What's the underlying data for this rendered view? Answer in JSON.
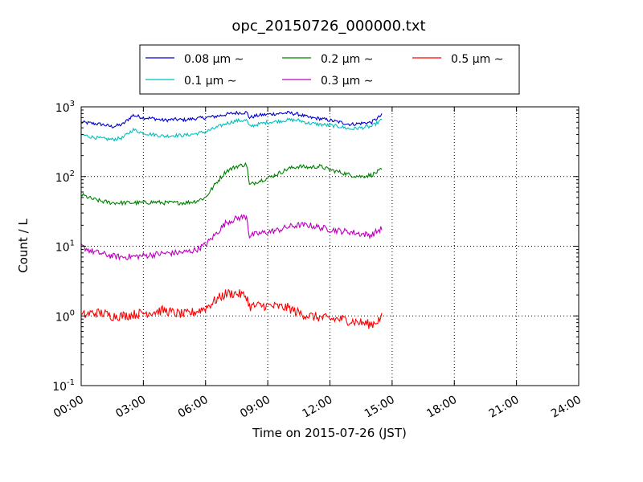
{
  "chart_data": {
    "type": "line",
    "title": "opc_20150726_000000.txt",
    "xlabel": "Time on 2015-07-26 (JST)",
    "ylabel": "Count / L",
    "x_unit": "hours",
    "xlim": [
      0,
      24
    ],
    "ylim": [
      0.1,
      1000
    ],
    "yscale": "log",
    "grid": true,
    "grid_style": "dotted",
    "legend_position": "above-plot",
    "legend_columns": 3,
    "x_tick_labels": [
      "00:00",
      "03:00",
      "06:00",
      "09:00",
      "12:00",
      "15:00",
      "18:00",
      "21:00",
      "24:00"
    ],
    "x_ticks": [
      0,
      3,
      6,
      9,
      12,
      15,
      18,
      21,
      24
    ],
    "y_ticks": [
      {
        "value": 0.1,
        "base": "10",
        "exp": "-1"
      },
      {
        "value": 1,
        "base": "10",
        "exp": "0"
      },
      {
        "value": 10,
        "base": "10",
        "exp": "1"
      },
      {
        "value": 100,
        "base": "10",
        "exp": "2"
      },
      {
        "value": 1000,
        "base": "10",
        "exp": "3"
      }
    ],
    "x": [
      0,
      0.5,
      1,
      1.5,
      2,
      2.5,
      3,
      3.5,
      4,
      4.5,
      5,
      5.5,
      6,
      6.5,
      7,
      7.5,
      8,
      8.1,
      8.5,
      9,
      9.5,
      10,
      10.5,
      11,
      11.5,
      12,
      12.5,
      13,
      13.5,
      14,
      14.5
    ],
    "series": [
      {
        "name": "0.08 μm ∼",
        "color": "#0000cc",
        "noise": 0.025,
        "values": [
          600,
          580,
          560,
          520,
          560,
          760,
          700,
          680,
          640,
          660,
          650,
          680,
          700,
          730,
          780,
          820,
          830,
          700,
          750,
          780,
          800,
          820,
          780,
          700,
          680,
          640,
          600,
          560,
          580,
          600,
          760
        ]
      },
      {
        "name": "0.1 μm ∼",
        "color": "#00bfbf",
        "noise": 0.025,
        "values": [
          400,
          370,
          350,
          340,
          360,
          470,
          420,
          400,
          380,
          390,
          390,
          410,
          440,
          500,
          580,
          630,
          640,
          520,
          560,
          600,
          620,
          650,
          640,
          580,
          560,
          540,
          520,
          480,
          500,
          520,
          650
        ]
      },
      {
        "name": "0.2 μm ∼",
        "color": "#008000",
        "noise": 0.03,
        "values": [
          55,
          48,
          44,
          42,
          42,
          42,
          42,
          43,
          42,
          42,
          42,
          44,
          50,
          80,
          120,
          140,
          150,
          75,
          85,
          95,
          110,
          130,
          140,
          135,
          140,
          125,
          115,
          105,
          100,
          105,
          125
        ]
      },
      {
        "name": "0.3 μm ∼",
        "color": "#bf00bf",
        "noise": 0.045,
        "values": [
          10,
          8.5,
          7.8,
          7.2,
          7.0,
          7.1,
          7.3,
          7.6,
          7.9,
          8.0,
          8.2,
          8.8,
          10.5,
          15,
          22,
          25,
          27,
          14,
          15,
          16,
          17,
          19,
          20,
          20,
          18.5,
          17.5,
          16.5,
          16,
          15,
          14.5,
          18
        ]
      },
      {
        "name": "0.5 μm ∼",
        "color": "#ff0000",
        "noise": 0.07,
        "values": [
          1.0,
          1.1,
          1.1,
          1.0,
          1.0,
          1.05,
          1.1,
          1.15,
          1.2,
          1.1,
          1.05,
          1.15,
          1.3,
          1.7,
          2.1,
          2.1,
          1.9,
          1.35,
          1.4,
          1.4,
          1.35,
          1.3,
          1.1,
          1.0,
          0.95,
          0.9,
          0.9,
          0.85,
          0.8,
          0.75,
          0.95
        ]
      }
    ]
  }
}
